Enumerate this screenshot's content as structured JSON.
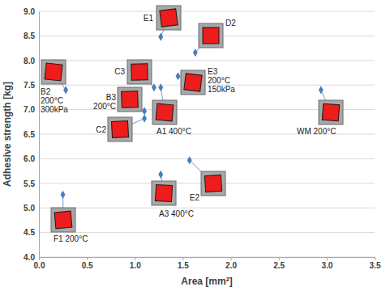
{
  "chart_data": {
    "type": "scatter",
    "x_label": "Area [mm²]",
    "y_label": "Adhesive strength [kg]",
    "x": [
      1.27,
      1.63,
      1.45,
      1.2,
      0.28,
      1.1,
      1.27,
      1.1,
      2.94,
      1.57,
      1.27,
      0.25
    ],
    "values": [
      8.48,
      8.16,
      7.68,
      7.45,
      7.4,
      6.97,
      7.45,
      6.82,
      7.4,
      5.97,
      5.68,
      5.27
    ],
    "labels": [
      [
        "E1"
      ],
      [
        "D2"
      ],
      [
        "E3",
        "200°C",
        "150kPa"
      ],
      [
        "C3"
      ],
      [
        "B2",
        "200°C",
        "300kPa"
      ],
      [
        "B3",
        "200°C"
      ],
      [
        "A1 400°C"
      ],
      [
        "C2"
      ],
      [
        "WM 200°C"
      ],
      [
        "E2"
      ],
      [
        "A3 400°C"
      ],
      [
        "F1 200°C"
      ]
    ],
    "color": "#4a7ebb",
    "marker": "diamond",
    "xlim": [
      0,
      3.5
    ],
    "ylim": [
      4,
      9
    ],
    "xticks": [
      {
        "value": 0,
        "label": "0.0"
      },
      {
        "value": 0.5,
        "label": "0.5"
      },
      {
        "value": 1,
        "label": "1.0"
      },
      {
        "value": 1.5,
        "label": "1.5"
      },
      {
        "value": 2,
        "label": "2.0"
      },
      {
        "value": 2.5,
        "label": "2.5"
      },
      {
        "value": 3,
        "label": "3.0"
      },
      {
        "value": 3.5,
        "label": "3.5"
      }
    ],
    "yticks": [
      {
        "value": 4,
        "label": "4.0"
      },
      {
        "value": 4.5,
        "label": "4.5"
      },
      {
        "value": 5,
        "label": "5.0"
      },
      {
        "value": 5.5,
        "label": "5.5"
      },
      {
        "value": 6,
        "label": "6.0"
      },
      {
        "value": 6.5,
        "label": "6.5"
      },
      {
        "value": 7,
        "label": "7.0"
      },
      {
        "value": 7.5,
        "label": "7.5"
      },
      {
        "value": 8,
        "label": "8.0"
      },
      {
        "value": 8.5,
        "label": "8.5"
      },
      {
        "value": 9,
        "label": "9.0"
      }
    ],
    "grid": true
  }
}
